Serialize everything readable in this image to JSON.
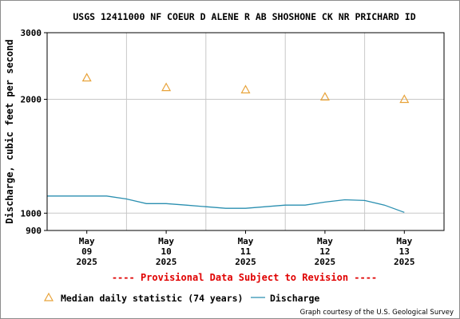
{
  "chart_data": {
    "type": "line",
    "title": "USGS 12411000 NF COEUR D ALENE R AB SHOSHONE CK NR PRICHARD ID",
    "ylabel": "Discharge, cubic feet per second",
    "xlabel": "",
    "y_scale": "log",
    "ylim": [
      900,
      3000
    ],
    "y_ticks": [
      {
        "value": 3000,
        "label": "3000"
      },
      {
        "value": 2000,
        "label": "2000"
      },
      {
        "value": 1000,
        "label": "1000"
      },
      {
        "value": 900,
        "label": "900"
      }
    ],
    "xlim": [
      "2025-05-08T12:00",
      "2025-05-13T12:00"
    ],
    "x_ticks": [
      {
        "date": "2025-05-09",
        "month": "May",
        "day": "09",
        "year": "2025"
      },
      {
        "date": "2025-05-10",
        "month": "May",
        "day": "10",
        "year": "2025"
      },
      {
        "date": "2025-05-11",
        "month": "May",
        "day": "11",
        "year": "2025"
      },
      {
        "date": "2025-05-12",
        "month": "May",
        "day": "12",
        "year": "2025"
      },
      {
        "date": "2025-05-13",
        "month": "May",
        "day": "13",
        "year": "2025"
      }
    ],
    "grid": true,
    "series": [
      {
        "name": "Median daily statistic (74 years)",
        "marker": "triangle",
        "color": "#e8a33a",
        "x": [
          "2025-05-09",
          "2025-05-10",
          "2025-05-11",
          "2025-05-12",
          "2025-05-13"
        ],
        "values": [
          2280,
          2150,
          2120,
          2030,
          2000
        ]
      },
      {
        "name": "Discharge",
        "marker": "line",
        "color": "#2a8fb0",
        "x": [
          "2025-05-08T12:00",
          "2025-05-09T00:00",
          "2025-05-09T06:00",
          "2025-05-09T12:00",
          "2025-05-09T18:00",
          "2025-05-10T00:00",
          "2025-05-10T06:00",
          "2025-05-10T12:00",
          "2025-05-10T18:00",
          "2025-05-11T00:00",
          "2025-05-11T06:00",
          "2025-05-11T12:00",
          "2025-05-11T18:00",
          "2025-05-12T00:00",
          "2025-05-12T06:00",
          "2025-05-12T12:00",
          "2025-05-12T18:00",
          "2025-05-13T00:00"
        ],
        "values": [
          1110,
          1110,
          1110,
          1090,
          1060,
          1060,
          1050,
          1040,
          1030,
          1030,
          1040,
          1050,
          1050,
          1070,
          1085,
          1080,
          1050,
          1005
        ]
      }
    ],
    "legend_position": "bottom"
  },
  "notice": "---- Provisional Data Subject to Revision ----",
  "credit": "Graph courtesy of the U.S. Geological Survey",
  "colors": {
    "notice": "#e00000",
    "grid": "#c8c8c8",
    "axis": "#000000"
  }
}
